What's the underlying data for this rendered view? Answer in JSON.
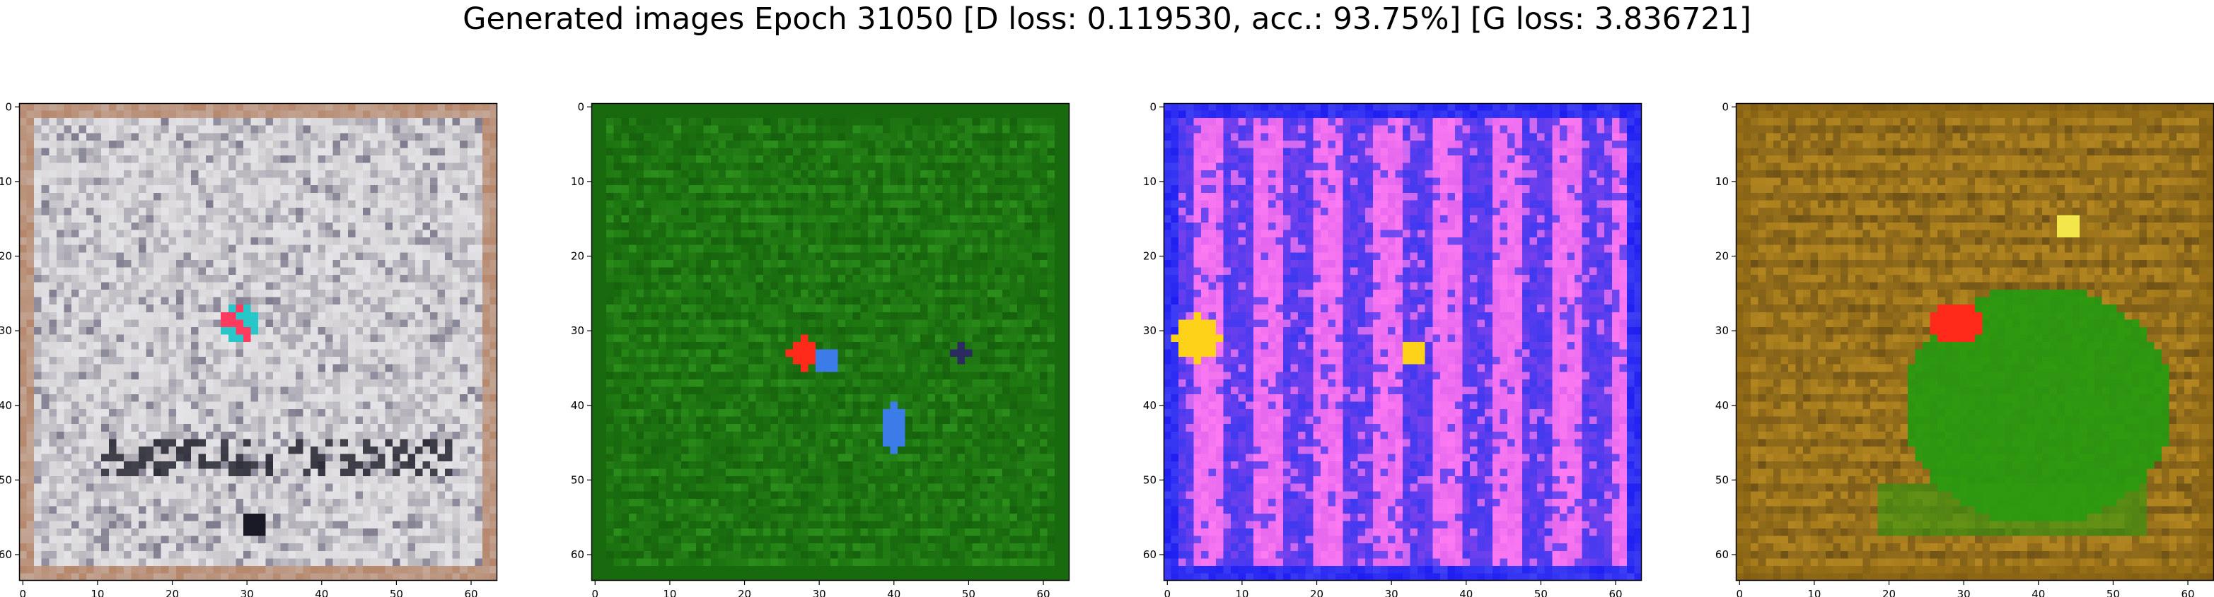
{
  "figure": {
    "title": "Generated images Epoch 31050 [D loss: 0.119530, acc.: 93.75%] [G loss: 3.836721]"
  },
  "chart_data": [
    {
      "type": "heatmap",
      "description_content": "generated image 1",
      "xlim": [
        0,
        63
      ],
      "ylim": [
        63,
        0
      ],
      "xticks": [
        0,
        10,
        20,
        30,
        40,
        50,
        60
      ],
      "yticks": [
        0,
        10,
        20,
        30,
        40,
        50,
        60
      ],
      "palette": {
        "base": "#d8d6d8",
        "border": "#b5866a",
        "noise_a": "#6e6a80",
        "noise_b": "#f4f4fa",
        "accent_a": "#ff3a60",
        "accent_b": "#27c7c9",
        "accent_c": "#1a1a26"
      }
    },
    {
      "type": "heatmap",
      "description_content": "generated image 2",
      "xlim": [
        0,
        63
      ],
      "ylim": [
        63,
        0
      ],
      "xticks": [
        0,
        10,
        20,
        30,
        40,
        50,
        60
      ],
      "yticks": [
        0,
        10,
        20,
        30,
        40,
        50,
        60
      ],
      "palette": {
        "base": "#1f7a12",
        "border": "#196a0e",
        "noise_a": "#0f4c08",
        "noise_b": "#3fae2a",
        "accent_a": "#ff2a1a",
        "accent_b": "#3c7ce8",
        "accent_c": "#2b2b60"
      }
    },
    {
      "type": "heatmap",
      "description_content": "generated image 3",
      "xlim": [
        0,
        63
      ],
      "ylim": [
        63,
        0
      ],
      "xticks": [
        0,
        10,
        20,
        30,
        40,
        50,
        60
      ],
      "yticks": [
        0,
        10,
        20,
        30,
        40,
        50,
        60
      ],
      "palette": {
        "base": "#c04ce8",
        "border": "#1e1ef2",
        "noise_a": "#3a38f0",
        "noise_b": "#ff7cf2",
        "accent_a": "#ffd21a",
        "accent_b": "#ff3ab8",
        "accent_c": "#18e2ff"
      }
    },
    {
      "type": "heatmap",
      "description_content": "generated image 4",
      "xlim": [
        0,
        63
      ],
      "ylim": [
        63,
        0
      ],
      "xticks": [
        0,
        10,
        20,
        30,
        40,
        50,
        60
      ],
      "yticks": [
        0,
        10,
        20,
        30,
        40,
        50,
        60
      ],
      "palette": {
        "base": "#a77c1c",
        "border": "#8a6412",
        "noise_a": "#3a2a12",
        "noise_b": "#c99a2c",
        "accent_a": "#ff2a1a",
        "accent_b": "#2f9a10",
        "accent_c": "#f2e64a"
      }
    }
  ]
}
